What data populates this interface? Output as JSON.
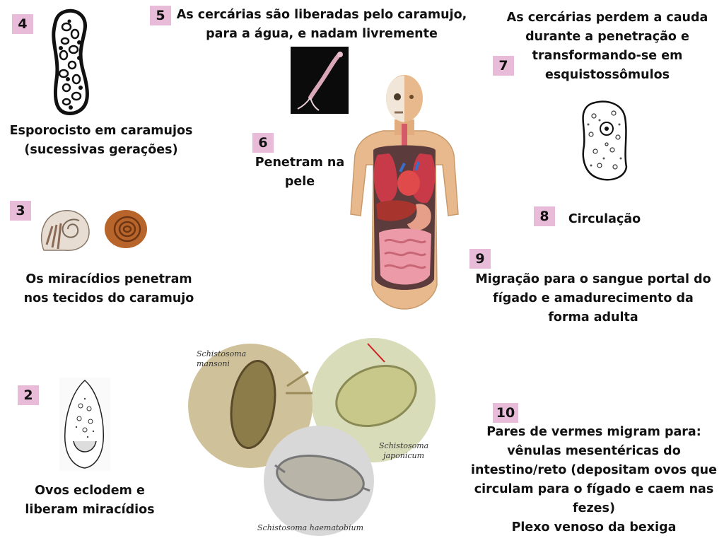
{
  "steps": [
    {
      "num": "2",
      "lines": [
        "Ovos eclodem e",
        "liberam miracídios"
      ]
    },
    {
      "num": "3",
      "lines": [
        "Os miracídios penetram",
        "nos tecidos do caramujo"
      ]
    },
    {
      "num": "4",
      "lines": [
        "Esporocisto em caramujos",
        "(sucessivas gerações)"
      ]
    },
    {
      "num": "5",
      "lines": [
        "As cercárias são liberadas pelo caramujo,",
        "para a água, e nadam livremente"
      ]
    },
    {
      "num": "6",
      "lines": [
        "Penetram na",
        "pele"
      ]
    },
    {
      "num": "7",
      "lines": [
        "As cercárias perdem a cauda",
        "durante a penetração e",
        "transformando-se  em",
        "esquistossômulos"
      ]
    },
    {
      "num": "8",
      "lines": [
        "Circulação"
      ]
    },
    {
      "num": "9",
      "lines": [
        "Migração para o sangue portal do",
        "fígado e amadurecimento da",
        "forma adulta"
      ]
    },
    {
      "num": "10",
      "lines": [
        "Pares de vermes migram para:",
        "vênulas mesentéricas do",
        "intestino/reto (depositam ovos que",
        "circulam para o fígado e caem nas",
        "fezes)",
        "Plexo venoso da bexiga"
      ]
    }
  ],
  "egg_captions": {
    "mansoni": [
      "Schistosoma",
      "mansoni"
    ],
    "japonicum": [
      "Schistosoma",
      "japonicum"
    ],
    "haematobium": [
      "Schistosoma haematobium"
    ]
  },
  "colors": {
    "badge": "#e8bcd8",
    "text": "#111111"
  }
}
